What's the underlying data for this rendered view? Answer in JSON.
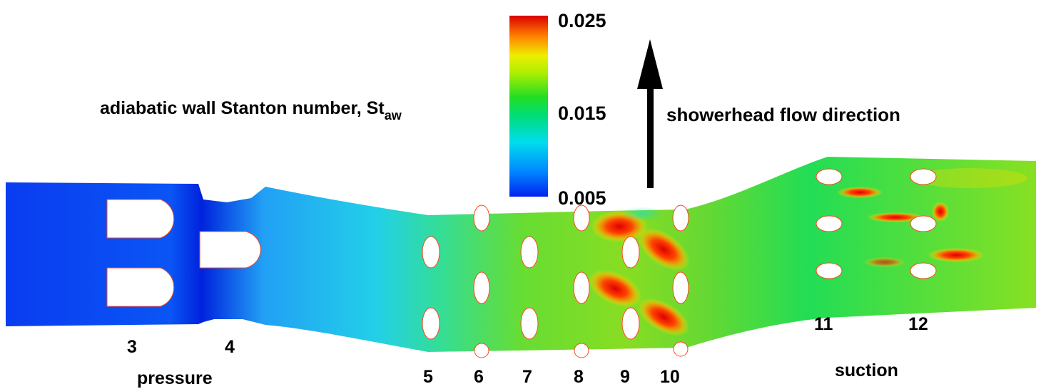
{
  "title": {
    "text": "adiabatic wall Stanton number, St",
    "subscript": "aw"
  },
  "colorbar": {
    "max_label": "0.025",
    "mid_label": "0.015",
    "min_label": "0.005",
    "colors": [
      "#0022ee",
      "#00aaff",
      "#00eecc",
      "#22dd33",
      "#99ee00",
      "#eeee00",
      "#ff9900",
      "#ff2200",
      "#dd0000"
    ]
  },
  "arrow_label": "showerhead flow direction",
  "region_labels": {
    "pressure": "pressure",
    "suction": "suction"
  },
  "row_labels": [
    "3",
    "4",
    "5",
    "6",
    "7",
    "8",
    "9",
    "10",
    "11",
    "12"
  ]
}
